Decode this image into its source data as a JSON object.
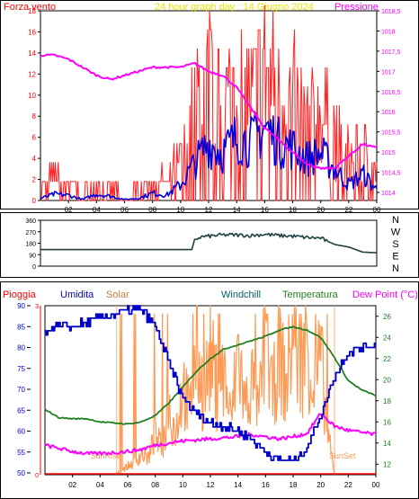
{
  "chart_data": [
    {
      "type": "line",
      "title": "24 hour graph day : 14 Giugno 2024",
      "left_label": "Forza vento",
      "right_label": "Pressione",
      "x_ticks": [
        "02",
        "04",
        "06",
        "08",
        "10",
        "12",
        "14",
        "16",
        "18",
        "20",
        "22",
        "00"
      ],
      "y_left_ticks": [
        "0",
        "2",
        "4",
        "6",
        "8",
        "10",
        "12",
        "14",
        "16",
        "18"
      ],
      "y_right_ticks": [
        "1014",
        "1014,5",
        "1015",
        "1015,5",
        "1016",
        "1016,5",
        "1017",
        "1017,5",
        "1018",
        "1018,5"
      ],
      "y_left_range": [
        0,
        18
      ],
      "y_right_range": [
        1013.8,
        1018.5
      ],
      "colors": {
        "gust": "#ff2020",
        "wind": "#0000e0",
        "pressure": "#ff00ff",
        "title": "#e6e600"
      },
      "series": [
        {
          "kind": "pressure",
          "x": [
            0,
            1,
            2,
            3,
            4,
            5,
            6,
            7,
            8,
            9,
            10,
            11,
            12,
            13,
            14,
            15,
            16,
            17,
            18,
            19,
            20,
            21,
            22,
            23,
            24
          ],
          "values": [
            1017.4,
            1017.4,
            1017.3,
            1017.1,
            1016.9,
            1016.8,
            1016.9,
            1017.0,
            1017.1,
            1017.1,
            1017.1,
            1017.2,
            1017.0,
            1016.9,
            1016.6,
            1016.1,
            1015.6,
            1015.3,
            1015.0,
            1014.7,
            1014.6,
            1014.6,
            1014.9,
            1015.2,
            1015.1
          ]
        },
        {
          "kind": "gust",
          "x": [
            0,
            1,
            2,
            3,
            4,
            5,
            6,
            7,
            8,
            9,
            10,
            11,
            12,
            13,
            14,
            15,
            16,
            17,
            18,
            19,
            20,
            21,
            22,
            23,
            24
          ],
          "values": [
            1.5,
            2.2,
            1.8,
            0.6,
            1.8,
            1.2,
            0.6,
            0.9,
            2.5,
            1.6,
            4.5,
            9.5,
            12.5,
            9.0,
            13.5,
            11.0,
            14.5,
            11.0,
            11.0,
            8.0,
            9.5,
            6.5,
            4.5,
            5.5,
            3.0
          ]
        },
        {
          "kind": "wind",
          "x": [
            0,
            1,
            2,
            3,
            4,
            5,
            6,
            7,
            8,
            9,
            10,
            11,
            12,
            13,
            14,
            15,
            16,
            17,
            18,
            19,
            20,
            21,
            22,
            23,
            24
          ],
          "values": [
            0.2,
            0.6,
            0.5,
            0.1,
            0.6,
            0.4,
            0.1,
            0.2,
            0.7,
            0.5,
            1.5,
            3.5,
            5.5,
            4.5,
            6.0,
            5.5,
            7.0,
            5.5,
            5.0,
            4.0,
            4.5,
            3.0,
            1.5,
            2.5,
            1.0
          ]
        }
      ]
    },
    {
      "type": "line",
      "right_label": "N W S E N",
      "x_ticks": [],
      "y_ticks": [
        "0",
        "90",
        "180",
        "270",
        "360"
      ],
      "y_range": [
        0,
        360
      ],
      "colors": {
        "direction": "#204040"
      },
      "series": [
        {
          "kind": "direction",
          "x": [
            0,
            3,
            6,
            9,
            10.8,
            11,
            11.5,
            12,
            13,
            14,
            15,
            16,
            17,
            18,
            19,
            20,
            21,
            22,
            23,
            24
          ],
          "values": [
            130,
            130,
            130,
            130,
            130,
            210,
            230,
            235,
            245,
            245,
            240,
            250,
            240,
            235,
            225,
            220,
            170,
            150,
            110,
            105
          ]
        }
      ]
    },
    {
      "type": "line",
      "legend": [
        "Pioggia",
        "Umidita",
        "Solar",
        "Windchill",
        "Temperatura",
        "Dew Point (°C)"
      ],
      "x_ticks": [
        "02",
        "04",
        "06",
        "08",
        "10",
        "12",
        "14",
        "16",
        "18",
        "20",
        "22",
        "00"
      ],
      "y_humidity_ticks": [
        "50",
        "55",
        "60",
        "65",
        "70",
        "75",
        "80",
        "85",
        "90"
      ],
      "y_rain_ticks": [
        "0",
        "3"
      ],
      "y_temp_ticks": [
        "12",
        "14",
        "16",
        "18",
        "20",
        "22",
        "24",
        "26"
      ],
      "annotations": [
        "SunRise",
        "SunSet"
      ],
      "colors": {
        "rain": "#ff0000",
        "humidity": "#0000cc",
        "solar": "#ff9a55",
        "windchill": "#006666",
        "temperature": "#208020",
        "dewpoint": "#ff00ff"
      },
      "series": [
        {
          "kind": "humidity",
          "x": [
            0,
            1,
            2,
            3,
            4,
            5,
            6,
            7,
            8,
            9,
            10,
            11,
            12,
            13,
            14,
            15,
            16,
            17,
            18,
            19,
            20,
            21,
            22,
            23,
            24
          ],
          "values": [
            84,
            85,
            85,
            86,
            87,
            88,
            89,
            89,
            85,
            76,
            68,
            64,
            62,
            61,
            60,
            58,
            55,
            53,
            53,
            56,
            64,
            73,
            79,
            80,
            81
          ]
        },
        {
          "kind": "temperature",
          "x": [
            0,
            1,
            2,
            3,
            4,
            5,
            6,
            7,
            8,
            9,
            10,
            11,
            12,
            13,
            14,
            15,
            16,
            17,
            18,
            19,
            20,
            21,
            22,
            23,
            24
          ],
          "values": [
            17.2,
            16.4,
            16.3,
            16.3,
            16.0,
            15.9,
            15.8,
            16.0,
            16.6,
            17.8,
            19.3,
            20.8,
            22.0,
            22.9,
            23.3,
            23.7,
            24.1,
            24.7,
            25.0,
            24.7,
            24.0,
            22.1,
            19.9,
            19.0,
            18.5
          ]
        },
        {
          "kind": "dewpoint",
          "x": [
            0,
            1,
            2,
            3,
            4,
            5,
            6,
            7,
            8,
            9,
            10,
            11,
            12,
            13,
            14,
            15,
            16,
            17,
            18,
            19,
            20,
            21,
            22,
            23,
            24
          ],
          "values": [
            13.8,
            13.5,
            13.2,
            13.0,
            13.0,
            13.1,
            13.2,
            13.4,
            13.8,
            14.0,
            14.2,
            14.3,
            14.4,
            14.5,
            14.6,
            14.8,
            14.6,
            14.4,
            14.6,
            14.9,
            16.8,
            15.6,
            15.2,
            15.0,
            14.8
          ]
        },
        {
          "kind": "solar",
          "x": [
            5.0,
            5.5,
            6,
            6.5,
            7,
            7.5,
            8,
            8.5,
            9,
            9.5,
            10,
            10.5,
            11,
            11.5,
            12,
            12.5,
            13,
            13.5,
            14,
            14.5,
            15,
            15.5,
            16,
            16.5,
            17,
            17.5,
            18,
            18.5,
            19,
            19.5,
            20,
            20.5,
            21
          ],
          "values": [
            0,
            1,
            2,
            3,
            5,
            4,
            9,
            6,
            16,
            10,
            22,
            14,
            30,
            18,
            28,
            20,
            24,
            12,
            30,
            16,
            22,
            14,
            34,
            18,
            30,
            20,
            36,
            24,
            32,
            20,
            28,
            10,
            0
          ]
        },
        {
          "kind": "rain",
          "values": [
            0
          ]
        }
      ]
    }
  ]
}
